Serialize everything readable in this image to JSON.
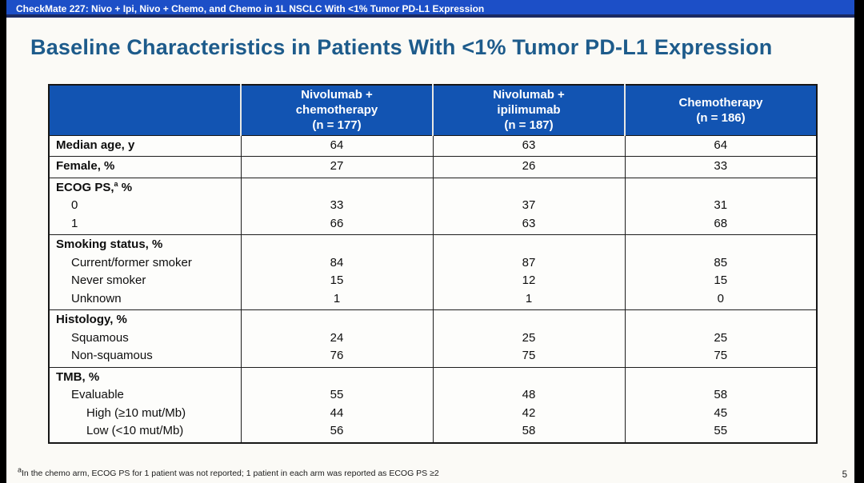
{
  "top_bar": {
    "text": "CheckMate 227: Nivo + Ipi, Nivo + Chemo, and Chemo in 1L NSCLC With <1% Tumor PD-L1 Expression",
    "bg_color": "#1c4fc7",
    "text_color": "#ffffff"
  },
  "slide": {
    "title": "Baseline Characteristics in Patients With <1% Tumor PD-L1 Expression",
    "title_color": "#1d5b8b",
    "background_color": "#fbfaf6",
    "page_number": "5",
    "footnote": {
      "sup": "a",
      "text": "In the chemo arm, ECOG PS for 1 patient was not reported; 1 patient in each arm was reported as ECOG PS ≥2"
    }
  },
  "table": {
    "header_bg_color": "#1254b2",
    "header_text_color": "#ffffff",
    "columns": [
      {
        "lines": [
          "Nivolumab +",
          "chemotherapy",
          "(n = 177)"
        ]
      },
      {
        "lines": [
          "Nivolumab +",
          "ipilimumab",
          "(n = 187)"
        ]
      },
      {
        "lines": [
          "Chemotherapy",
          "(n = 186)"
        ]
      }
    ],
    "rows": [
      {
        "lines": [
          {
            "text": "Median age, y",
            "bold": true,
            "indent": 0,
            "values": [
              "64",
              "63",
              "64"
            ]
          }
        ]
      },
      {
        "lines": [
          {
            "text": "Female, %",
            "bold": true,
            "indent": 0,
            "values": [
              "27",
              "26",
              "33"
            ]
          }
        ]
      },
      {
        "lines": [
          {
            "text": "ECOG PS,",
            "sup": "a",
            "post": " %",
            "bold": true,
            "indent": 0,
            "values": [
              "",
              "",
              ""
            ]
          },
          {
            "text": "0",
            "indent": 1,
            "values": [
              "33",
              "37",
              "31"
            ]
          },
          {
            "text": "1",
            "indent": 1,
            "values": [
              "66",
              "63",
              "68"
            ]
          }
        ]
      },
      {
        "lines": [
          {
            "text": "Smoking status, %",
            "bold": true,
            "indent": 0,
            "values": [
              "",
              "",
              ""
            ]
          },
          {
            "text": "Current/former smoker",
            "indent": 1,
            "values": [
              "84",
              "87",
              "85"
            ]
          },
          {
            "text": "Never smoker",
            "indent": 1,
            "values": [
              "15",
              "12",
              "15"
            ]
          },
          {
            "text": "Unknown",
            "indent": 1,
            "values": [
              "1",
              "1",
              "0"
            ]
          }
        ]
      },
      {
        "lines": [
          {
            "text": "Histology, %",
            "bold": true,
            "indent": 0,
            "values": [
              "",
              "",
              ""
            ]
          },
          {
            "text": "Squamous",
            "indent": 1,
            "values": [
              "24",
              "25",
              "25"
            ]
          },
          {
            "text": "Non-squamous",
            "indent": 1,
            "values": [
              "76",
              "75",
              "75"
            ]
          }
        ]
      },
      {
        "lines": [
          {
            "text": "TMB, %",
            "bold": true,
            "indent": 0,
            "values": [
              "",
              "",
              ""
            ]
          },
          {
            "text": "Evaluable",
            "indent": 1,
            "values": [
              "55",
              "48",
              "58"
            ]
          },
          {
            "text": "High (≥10 mut/Mb)",
            "indent": 2,
            "values": [
              "44",
              "42",
              "45"
            ]
          },
          {
            "text": "Low (<10 mut/Mb)",
            "indent": 2,
            "values": [
              "56",
              "58",
              "55"
            ]
          }
        ]
      }
    ]
  }
}
